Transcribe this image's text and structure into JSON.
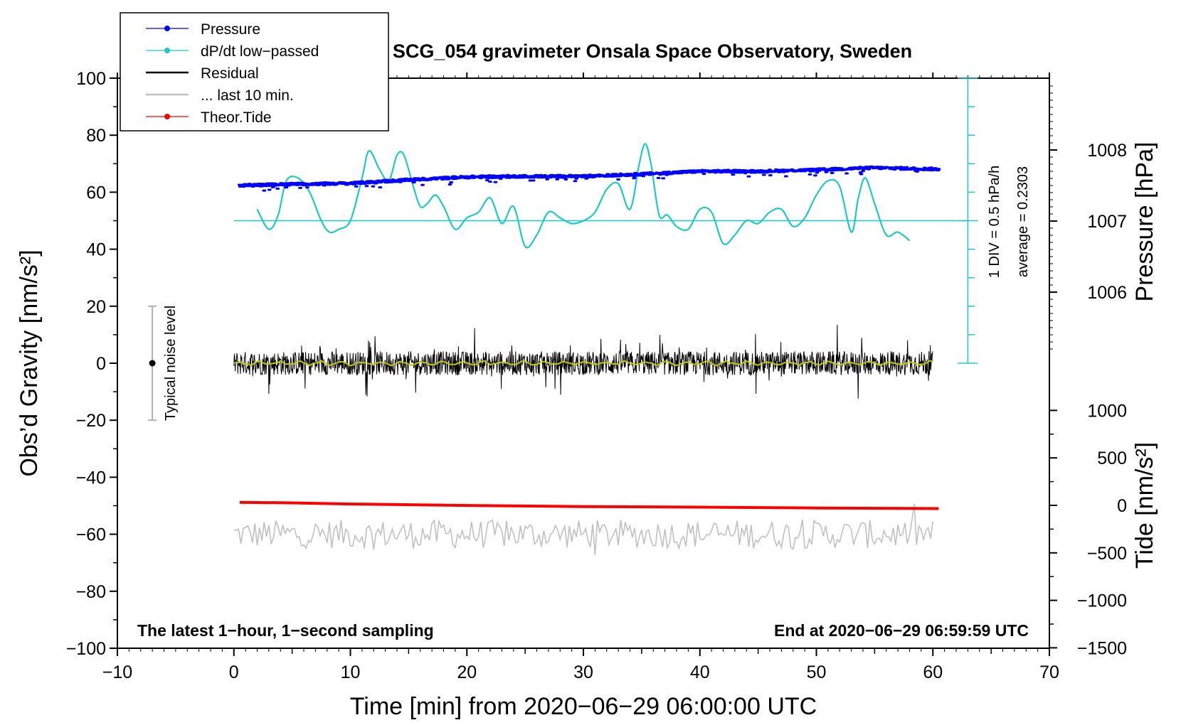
{
  "chart_data": {
    "type": "line",
    "title": "SCG_054 gravimeter Onsala Space Observatory, Sweden",
    "xlabel": "Time [min] from 2020−06−29 06:00:00 UTC",
    "ylabel": "Obs’d Gravity [nm/s²]",
    "ylabel_right_pressure": "Pressure [hPa]",
    "ylabel_right_tide": "Tide [nm/s²]",
    "xlim": [
      -10,
      70
    ],
    "ylim": [
      -100,
      100
    ],
    "x_ticks": [
      "−10",
      "0",
      "10",
      "20",
      "30",
      "40",
      "50",
      "60",
      "70"
    ],
    "y_ticks": [
      "100",
      "80",
      "60",
      "40",
      "20",
      "0",
      "−20",
      "−40",
      "−60",
      "−80",
      "−100"
    ],
    "pressure_ticks": [
      "1008",
      "1007",
      "1006"
    ],
    "pressure_tick_values": [
      1008,
      1007,
      1006
    ],
    "tide_ticks": [
      "1000",
      "500",
      "0",
      "−500",
      "−1000",
      "−1500"
    ],
    "tide_tick_values": [
      1000,
      500,
      0,
      -500,
      -1000,
      -1500
    ],
    "legend": [
      {
        "label": "Pressure",
        "color": "#0000ff",
        "marker": "dot"
      },
      {
        "label": "dP/dt low−passed",
        "color": "#1fc8c8",
        "marker": "dot"
      },
      {
        "label": "Residual",
        "color": "#000000",
        "marker": "line"
      },
      {
        "label": "... last 10 min.",
        "color": "#c0c0c0",
        "marker": "line"
      },
      {
        "label": "Theor.Tide",
        "color": "#ff0000",
        "marker": "dot"
      }
    ],
    "footer_left": "The latest 1−hour, 1−second sampling",
    "footer_right": "End at 2020−06−29 06:59:59 UTC",
    "noise_label": "Typical noise level",
    "noise_range": [
      -20,
      20
    ],
    "noise_x": -7,
    "dpdt_scale_label": "1 DIV = 0.5 hPa/h",
    "dpdt_average_label": "average = 0.2303",
    "dpdt_baseline_gravity": 50,
    "series": [
      {
        "name": "Pressure",
        "unit": "hPa",
        "color": "#0000ff",
        "x": [
          0.5,
          5,
          10,
          15,
          20,
          25,
          30,
          35,
          40,
          45,
          50,
          55,
          60.5
        ],
        "values": [
          1007.5,
          1007.52,
          1007.53,
          1007.58,
          1007.62,
          1007.63,
          1007.63,
          1007.66,
          1007.7,
          1007.7,
          1007.72,
          1007.75,
          1007.73
        ]
      },
      {
        "name": "dP/dt low−passed",
        "unit": "gravity-axis",
        "color": "#1fc8c8",
        "x": [
          2,
          3,
          3.8,
          4.5,
          5.5,
          6.5,
          7.5,
          8.2,
          9,
          10,
          11,
          11.6,
          12.5,
          13.3,
          14,
          14.6,
          15.4,
          16,
          16.6,
          17.3,
          18,
          19,
          20,
          21,
          22,
          23,
          24,
          25,
          26,
          27,
          28,
          29,
          30,
          31,
          32,
          33,
          34,
          34.8,
          35.3,
          35.8,
          36.5,
          37.2,
          38,
          39,
          40,
          41,
          42,
          43,
          44,
          45,
          46,
          47,
          48,
          49,
          50,
          51,
          52,
          53,
          53.6,
          54.2,
          55,
          56,
          57,
          58
        ],
        "values": [
          54,
          47,
          52,
          64,
          65,
          60,
          50,
          46,
          47,
          50,
          65,
          74.5,
          68,
          64,
          73,
          73,
          62,
          55,
          56,
          59,
          55,
          47,
          51,
          53,
          58,
          49,
          55,
          41,
          45,
          53,
          51,
          49,
          50,
          53,
          61,
          63,
          54,
          70,
          77,
          70,
          52,
          52,
          48,
          47,
          54,
          53,
          42,
          45,
          50,
          49,
          53,
          54,
          48,
          51,
          59,
          64,
          62,
          46,
          58,
          65,
          56,
          45,
          46,
          43
        ]
      },
      {
        "name": "Residual",
        "unit": "nm/s²",
        "color": "#000000",
        "x_range": [
          0,
          60
        ],
        "mean": 0,
        "amplitude": 6
      },
      {
        "name": "... last 10 min.",
        "unit": "nm/s²",
        "color": "#c0c0c0",
        "x_range": [
          0,
          60
        ],
        "mean": -60,
        "amplitude": 5
      },
      {
        "name": "Theor.Tide",
        "unit": "nm/s²",
        "color": "#ff0000",
        "x": [
          0.5,
          5,
          10,
          20,
          30,
          40,
          50,
          60.5
        ],
        "values": [
          -48.8,
          -49.0,
          -49.4,
          -49.9,
          -50.3,
          -50.5,
          -50.8,
          -51.0
        ]
      }
    ]
  }
}
